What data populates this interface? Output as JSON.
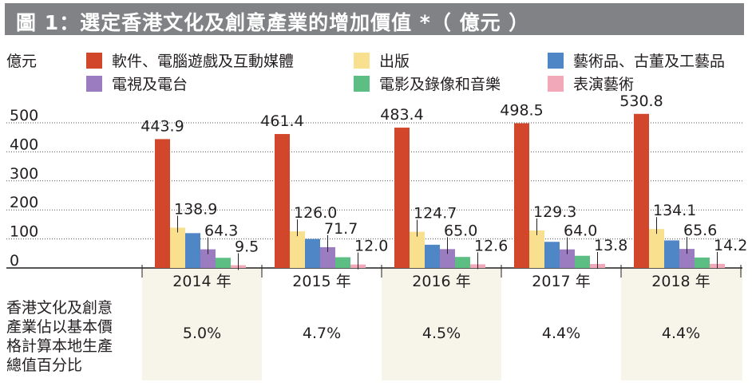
{
  "title": "圖 1：選定香港文化及創意產業的增加價值 *（ 億元 ）",
  "unit_label": "億元",
  "colors": {
    "title_bg": "#808285",
    "stripe": "#f7f4ea",
    "series": [
      "#d2462c",
      "#f8e08e",
      "#4f86c6",
      "#9b7cc0",
      "#5dbe84",
      "#f1a8b8"
    ]
  },
  "chart_data": {
    "type": "bar",
    "title": "選定香港文化及創意產業的增加價值 *",
    "ylabel": "億元",
    "ylim": [
      0,
      500
    ],
    "yticks": [
      0,
      100,
      200,
      300,
      400,
      500
    ],
    "grid": true,
    "legend_position": "top",
    "categories": [
      "2014 年",
      "2015 年",
      "2016 年",
      "2017 年",
      "2018 年"
    ],
    "series": [
      {
        "name": "軟件、電腦遊戲及互動媒體",
        "values": [
          443.9,
          461.4,
          483.4,
          498.5,
          530.8
        ],
        "labels": [
          "443.9",
          "461.4",
          "483.4",
          "498.5",
          "530.8"
        ]
      },
      {
        "name": "出版",
        "values": [
          138.9,
          126.0,
          124.7,
          129.3,
          134.1
        ],
        "labels": [
          "138.9",
          "126.0",
          "124.7",
          "129.3",
          "134.1"
        ]
      },
      {
        "name": "藝術品、古董及工藝品",
        "values": [
          120,
          100,
          80,
          90,
          95
        ],
        "labels": [
          "",
          "",
          "",
          "",
          ""
        ]
      },
      {
        "name": "電視及電台",
        "values": [
          64.3,
          71.7,
          65.0,
          64.0,
          65.6
        ],
        "labels": [
          "64.3",
          "71.7",
          "65.0",
          "64.0",
          "65.6"
        ]
      },
      {
        "name": "電影及錄像和音樂",
        "values": [
          35,
          37,
          38,
          42,
          36
        ],
        "labels": [
          "",
          "",
          "",
          "",
          ""
        ]
      },
      {
        "name": "表演藝術",
        "values": [
          9.5,
          12.0,
          12.6,
          13.8,
          14.2
        ],
        "labels": [
          "9.5",
          "12.0",
          "12.6",
          "13.8",
          "14.2"
        ]
      }
    ]
  },
  "share": {
    "label_lines": [
      "香港文化及創意",
      "產業佔以基本價",
      "格計算本地生產",
      "總值百分比"
    ],
    "values": [
      "5.0%",
      "4.7%",
      "4.5%",
      "4.4%",
      "4.4%"
    ]
  }
}
